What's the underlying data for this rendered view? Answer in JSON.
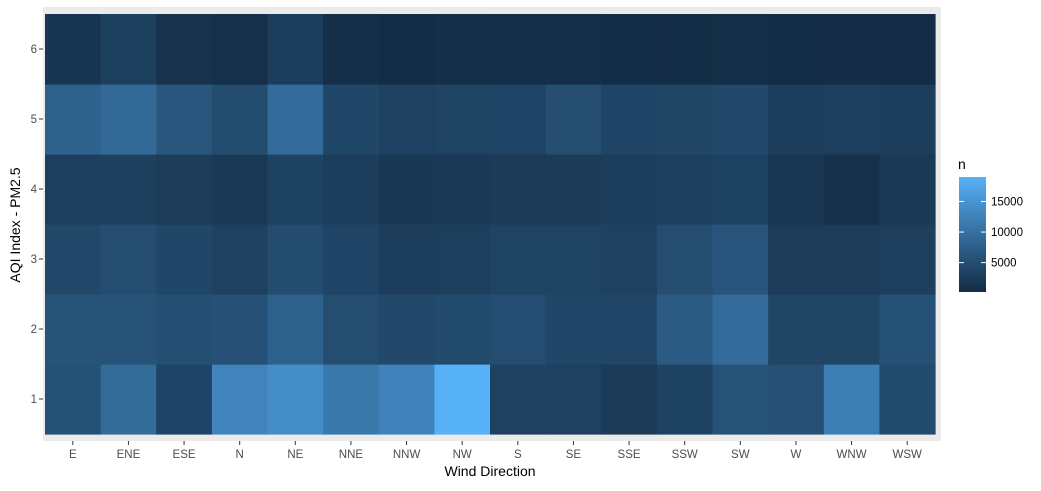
{
  "chart_data": {
    "type": "heatmap",
    "xlabel": "Wind Direction",
    "ylabel": "AQI Index - PM2.5",
    "x_categories": [
      "E",
      "ENE",
      "ESE",
      "N",
      "NE",
      "NNE",
      "NNW",
      "NW",
      "S",
      "SE",
      "SSE",
      "SSW",
      "SW",
      "W",
      "WNW",
      "WSW"
    ],
    "y_categories": [
      "1",
      "2",
      "3",
      "4",
      "5",
      "6"
    ],
    "legend": {
      "title": "n",
      "breaks": [
        5000,
        10000,
        15000
      ],
      "break_labels": [
        "5000",
        "10000",
        "15000"
      ],
      "min": 200,
      "max": 19000,
      "low_color": "#132B43",
      "high_color": "#56B1F7"
    },
    "values": [
      [
        5600,
        9200,
        3600,
        12700,
        14000,
        11200,
        12600,
        19000,
        3300,
        3300,
        2400,
        3400,
        5700,
        5200,
        12000,
        4700
      ],
      [
        5800,
        5800,
        5100,
        5400,
        7600,
        4900,
        4300,
        4700,
        5000,
        4100,
        3900,
        6900,
        9300,
        3800,
        3800,
        5500
      ],
      [
        4200,
        4900,
        4100,
        3300,
        4800,
        3700,
        2800,
        3000,
        3500,
        3500,
        3300,
        4900,
        6000,
        2600,
        2600,
        2900
      ],
      [
        3000,
        3100,
        2600,
        2200,
        3400,
        2700,
        2000,
        2200,
        2500,
        2500,
        2700,
        2900,
        3400,
        1800,
        1100,
        2100
      ],
      [
        7800,
        8900,
        6300,
        4800,
        9300,
        4100,
        3300,
        3500,
        3700,
        4900,
        3700,
        3800,
        4400,
        2700,
        2900,
        2800
      ],
      [
        1700,
        3100,
        1200,
        900,
        2800,
        700,
        500,
        800,
        600,
        600,
        500,
        500,
        600,
        500,
        400,
        400
      ]
    ]
  }
}
